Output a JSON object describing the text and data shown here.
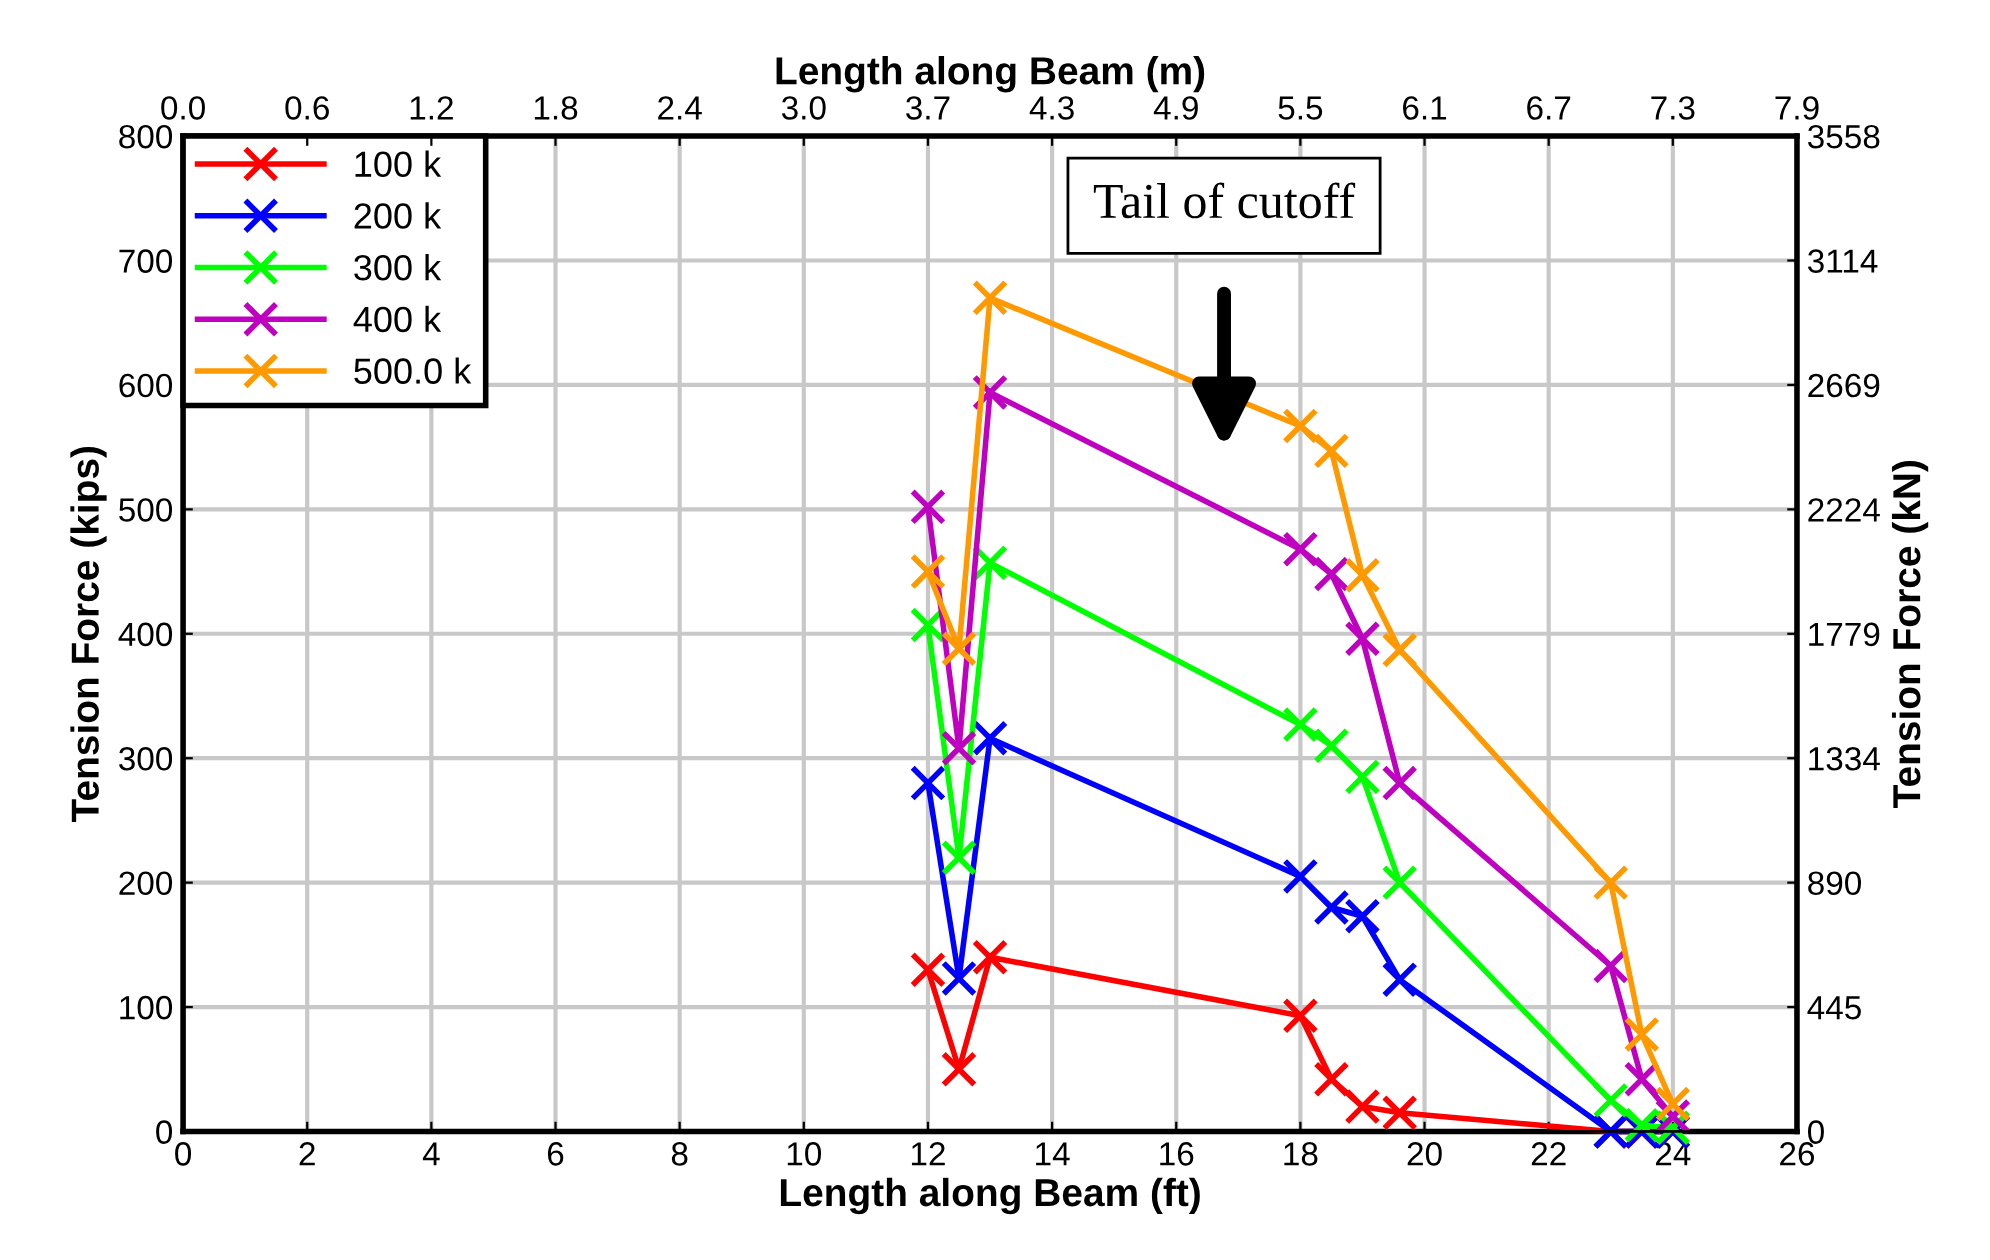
{
  "chart_data": {
    "type": "line",
    "xlabel": "Length along Beam (ft)",
    "ylabel": "Tension Force (kips)",
    "x2label": "Length along Beam (m)",
    "y2label": "Tension Force (kN)",
    "x": [
      12,
      12.5,
      13,
      18,
      18.5,
      19,
      19.6,
      23,
      23.5,
      24
    ],
    "series": [
      {
        "name": "100 k",
        "color": "#ff0000",
        "values": [
          130,
          50,
          140,
          93,
          42,
          20,
          15,
          0,
          0,
          0
        ]
      },
      {
        "name": "200 k",
        "color": "#0000ff",
        "values": [
          280,
          123,
          316,
          205,
          180,
          173,
          122,
          0,
          0,
          0
        ]
      },
      {
        "name": "300 k",
        "color": "#00ff00",
        "values": [
          407,
          220,
          457,
          327,
          310,
          285,
          200,
          25,
          5,
          3
        ]
      },
      {
        "name": "400 k",
        "color": "#c000c0",
        "values": [
          502,
          308,
          594,
          468,
          448,
          396,
          280,
          133,
          42,
          12
        ]
      },
      {
        "name": "500.0 k",
        "color": "#ff9900",
        "values": [
          450,
          388,
          670,
          567,
          547,
          447,
          387,
          200,
          78,
          22
        ]
      }
    ],
    "xlim": [
      0,
      26
    ],
    "xticks": [
      0,
      2,
      4,
      6,
      8,
      10,
      12,
      14,
      16,
      18,
      20,
      22,
      24,
      26
    ],
    "ylim": [
      0,
      800
    ],
    "yticks": [
      0,
      100,
      200,
      300,
      400,
      500,
      600,
      700,
      800
    ],
    "x2lim": [
      0,
      7.9248
    ],
    "x2ticks": [
      {
        "value": 0,
        "label": "0.0"
      },
      {
        "value": 0.6096,
        "label": "0.6"
      },
      {
        "value": 1.2192,
        "label": "1.2"
      },
      {
        "value": 1.8288,
        "label": "1.8"
      },
      {
        "value": 2.4384,
        "label": "2.4"
      },
      {
        "value": 3.048,
        "label": "3.0"
      },
      {
        "value": 3.6576,
        "label": "3.7"
      },
      {
        "value": 4.2672,
        "label": "4.3"
      },
      {
        "value": 4.8768,
        "label": "4.9"
      },
      {
        "value": 5.4864,
        "label": "5.5"
      },
      {
        "value": 6.096,
        "label": "6.1"
      },
      {
        "value": 6.7056,
        "label": "6.7"
      },
      {
        "value": 7.3152,
        "label": "7.3"
      },
      {
        "value": 7.9248,
        "label": "7.9"
      }
    ],
    "y2lim": [
      0,
      3558.4
    ],
    "y2ticks": [
      0,
      {
        "value": 444.8,
        "label": "445"
      },
      {
        "value": 889.6,
        "label": "890"
      },
      {
        "value": 1334.4,
        "label": "1334"
      },
      {
        "value": 1779.2,
        "label": "1779"
      },
      {
        "value": 2224,
        "label": "2224"
      },
      {
        "value": 2668.8,
        "label": "2669"
      },
      {
        "value": 3113.6,
        "label": "3114"
      },
      {
        "value": 3558.4,
        "label": "3558"
      }
    ],
    "annotations": [
      "Tail of cutoff"
    ],
    "grid": true,
    "legend": "top left",
    "marker": "cross",
    "line_style": "solid"
  }
}
